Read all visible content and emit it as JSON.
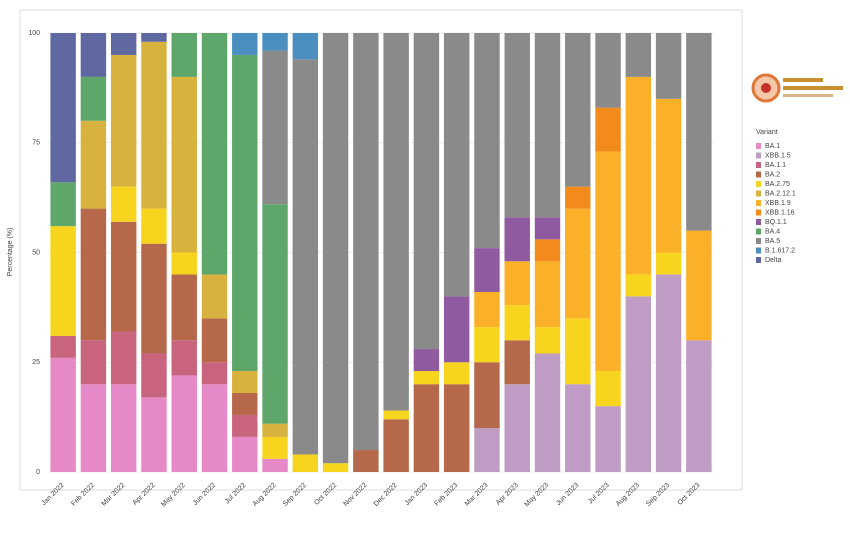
{
  "chart_data": {
    "type": "stacked-bar",
    "y_label": "Percentage (%)",
    "legend_title": "Variant",
    "categories": [
      "Jan 2022",
      "Feb 2022",
      "Mar 2022",
      "Apr 2022",
      "May 2022",
      "Jun 2022",
      "Jul 2022",
      "Aug 2022",
      "Sep 2022",
      "Oct 2022",
      "Nov 2022",
      "Dec 2022",
      "Jan 2023",
      "Feb 2023",
      "Mar 2023",
      "Apr 2023",
      "May 2023",
      "Jun 2023",
      "Jul 2023",
      "Aug 2023",
      "Sep 2023",
      "Oct 2023"
    ],
    "series": [
      {
        "name": "BA.1",
        "color": "#e58ac6",
        "values": [
          26,
          20,
          20,
          17,
          22,
          20,
          8,
          3,
          0,
          0,
          0,
          0,
          0,
          0,
          0,
          0,
          0,
          0,
          0,
          0,
          0,
          0
        ]
      },
      {
        "name": "XBB.1.5",
        "color": "#bf9cc4",
        "values": [
          0,
          0,
          0,
          0,
          0,
          0,
          0,
          0,
          0,
          0,
          0,
          0,
          0,
          0,
          10,
          20,
          27,
          20,
          15,
          40,
          45,
          30
        ]
      },
      {
        "name": "BA.1.1",
        "color": "#c9647f",
        "values": [
          5,
          10,
          12,
          10,
          8,
          5,
          5,
          0,
          0,
          0,
          0,
          0,
          0,
          0,
          0,
          0,
          0,
          0,
          0,
          0,
          0,
          0
        ]
      },
      {
        "name": "BA.2",
        "color": "#b5684a",
        "values": [
          0,
          30,
          25,
          25,
          15,
          10,
          5,
          0,
          0,
          0,
          5,
          12,
          20,
          20,
          15,
          10,
          0,
          0,
          0,
          0,
          0,
          0
        ]
      },
      {
        "name": "BA.2.75",
        "color": "#f7d51e",
        "values": [
          25,
          0,
          8,
          8,
          5,
          0,
          0,
          5,
          4,
          2,
          0,
          2,
          3,
          5,
          8,
          8,
          6,
          15,
          8,
          5,
          5,
          0
        ]
      },
      {
        "name": "BA.2.12.1",
        "color": "#d8b23e",
        "values": [
          0,
          20,
          30,
          38,
          40,
          10,
          5,
          3,
          0,
          0,
          0,
          0,
          0,
          0,
          0,
          0,
          0,
          0,
          0,
          0,
          0,
          0
        ]
      },
      {
        "name": "XBB.1.9",
        "color": "#fbb02a",
        "values": [
          0,
          0,
          0,
          0,
          0,
          0,
          0,
          0,
          0,
          0,
          0,
          0,
          0,
          0,
          8,
          10,
          15,
          25,
          50,
          45,
          35,
          25
        ]
      },
      {
        "name": "XBB.1.16",
        "color": "#f28a1c",
        "values": [
          0,
          0,
          0,
          0,
          0,
          0,
          0,
          0,
          0,
          0,
          0,
          0,
          0,
          0,
          0,
          0,
          5,
          5,
          10,
          0,
          0,
          0
        ]
      },
      {
        "name": "BQ.1.1",
        "color": "#8f5a9f",
        "values": [
          0,
          0,
          0,
          0,
          0,
          0,
          0,
          0,
          0,
          0,
          0,
          0,
          5,
          15,
          10,
          10,
          5,
          0,
          0,
          0,
          0,
          0
        ]
      },
      {
        "name": "BA.4",
        "color": "#5ea66a",
        "values": [
          10,
          10,
          0,
          0,
          10,
          55,
          72,
          50,
          0,
          0,
          0,
          0,
          0,
          0,
          0,
          0,
          0,
          0,
          0,
          0,
          0,
          0
        ]
      },
      {
        "name": "BA.5",
        "color": "#8a8a8a",
        "values": [
          0,
          0,
          0,
          0,
          0,
          0,
          0,
          35,
          90,
          98,
          95,
          86,
          72,
          60,
          49,
          42,
          42,
          35,
          17,
          10,
          15,
          45
        ]
      },
      {
        "name": "B.1.617.2",
        "color": "#4a8fbf",
        "values": [
          0,
          0,
          0,
          0,
          0,
          0,
          5,
          4,
          6,
          0,
          0,
          0,
          0,
          0,
          0,
          0,
          0,
          0,
          0,
          0,
          0,
          0
        ]
      },
      {
        "name": "Delta",
        "color": "#5f68a0",
        "values": [
          34,
          10,
          5,
          2,
          0,
          0,
          0,
          0,
          0,
          0,
          0,
          0,
          0,
          0,
          0,
          0,
          0,
          0,
          0,
          0,
          0,
          0
        ]
      }
    ],
    "ylim": [
      0,
      100
    ],
    "yticks": [
      0,
      25,
      50,
      75,
      100
    ],
    "grid": true
  }
}
